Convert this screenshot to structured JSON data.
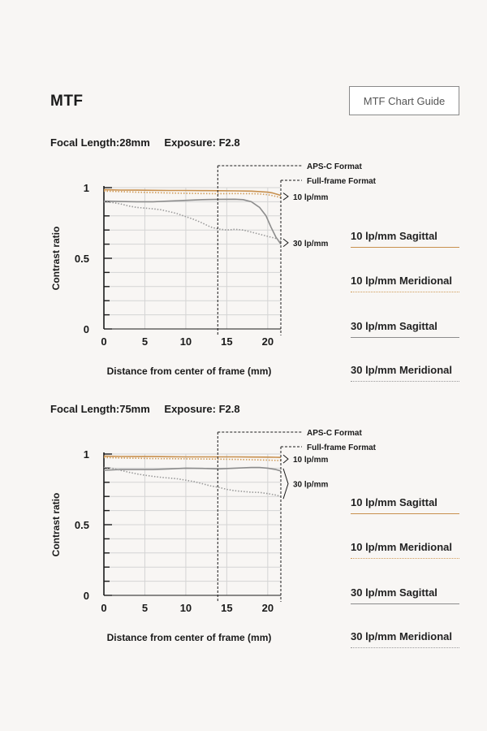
{
  "page": {
    "title": "MTF",
    "guide_button": "MTF Chart Guide"
  },
  "colors": {
    "sagittal_10": "#c8904e",
    "meridional_10": "#d09c5a",
    "sagittal_30": "#8c8c8c",
    "meridional_30": "#9a9a9a",
    "grid": "#d4d4d4"
  },
  "legend": [
    {
      "label": "10 lp/mm Sagittal",
      "color": "#c8904e",
      "style": "solid"
    },
    {
      "label": "10 lp/mm Meridional",
      "color": "#d09c5a",
      "style": "dotted"
    },
    {
      "label": "30 lp/mm Sagittal",
      "color": "#8c8c8c",
      "style": "solid"
    },
    {
      "label": "30 lp/mm Meridional",
      "color": "#9a9a9a",
      "style": "dotted"
    }
  ],
  "sections": [
    {
      "focal_label": "Focal Length:28mm",
      "exposure_label": "Exposure: F2.8"
    },
    {
      "focal_label": "Focal Length:75mm",
      "exposure_label": "Exposure: F2.8"
    }
  ],
  "chart_data": [
    {
      "type": "line",
      "xlabel": "Distance from center of frame (mm)",
      "ylabel": "Contrast ratio",
      "xlim": [
        0,
        21.6
      ],
      "ylim": [
        0,
        1
      ],
      "xticks": [
        "0",
        "5",
        "10",
        "15",
        "20"
      ],
      "yticks": [
        "0",
        "0.5",
        "1"
      ],
      "grid": true,
      "annotations": {
        "apsc": {
          "label": "APS-C Format",
          "x": 13.9
        },
        "fullframe": {
          "label": "Full-frame Format",
          "x": 21.6
        },
        "lp10_label": "10 lp/mm",
        "lp30_label": "30 lp/mm"
      },
      "series": [
        {
          "name": "10 lp/mm Sagittal",
          "color": "#c8904e",
          "dash": "",
          "x": [
            0,
            2,
            4,
            6,
            8,
            10,
            12,
            14,
            16,
            18,
            19,
            20,
            20.6,
            21.2,
            21.6
          ],
          "y": [
            0.985,
            0.983,
            0.982,
            0.981,
            0.98,
            0.98,
            0.979,
            0.978,
            0.977,
            0.975,
            0.972,
            0.968,
            0.962,
            0.952,
            0.945
          ]
        },
        {
          "name": "10 lp/mm Meridional",
          "color": "#d09c5a",
          "dash": "1.5,2",
          "x": [
            0,
            2,
            4,
            6,
            8,
            10,
            12,
            14,
            16,
            18,
            19,
            20,
            20.6,
            21.2,
            21.6
          ],
          "y": [
            0.975,
            0.972,
            0.968,
            0.965,
            0.962,
            0.96,
            0.958,
            0.957,
            0.958,
            0.957,
            0.955,
            0.95,
            0.943,
            0.935,
            0.93
          ]
        },
        {
          "name": "30 lp/mm Sagittal",
          "color": "#8c8c8c",
          "dash": "",
          "x": [
            0,
            2,
            4,
            6,
            8,
            10,
            12,
            14,
            16,
            17,
            18,
            19,
            19.8,
            20.4,
            21,
            21.6
          ],
          "y": [
            0.905,
            0.902,
            0.9,
            0.9,
            0.905,
            0.91,
            0.915,
            0.917,
            0.918,
            0.915,
            0.9,
            0.86,
            0.8,
            0.72,
            0.65,
            0.6
          ]
        },
        {
          "name": "30 lp/mm Meridional",
          "color": "#9a9a9a",
          "dash": "1.5,2",
          "x": [
            0,
            1,
            2,
            3,
            4,
            5,
            6,
            7,
            8,
            9,
            10,
            11,
            12,
            13,
            13.9,
            15,
            16,
            17,
            18,
            19,
            20,
            21,
            21.6
          ],
          "y": [
            0.9,
            0.895,
            0.885,
            0.87,
            0.86,
            0.855,
            0.85,
            0.843,
            0.83,
            0.815,
            0.795,
            0.775,
            0.75,
            0.722,
            0.708,
            0.7,
            0.705,
            0.7,
            0.685,
            0.67,
            0.655,
            0.64,
            0.62
          ]
        }
      ]
    },
    {
      "type": "line",
      "xlabel": "Distance from center of frame (mm)",
      "ylabel": "Contrast ratio",
      "xlim": [
        0,
        21.6
      ],
      "ylim": [
        0,
        1
      ],
      "xticks": [
        "0",
        "5",
        "10",
        "15",
        "20"
      ],
      "yticks": [
        "0",
        "0.5",
        "1"
      ],
      "grid": true,
      "annotations": {
        "apsc": {
          "label": "APS-C Format",
          "x": 13.9
        },
        "fullframe": {
          "label": "Full-frame Format",
          "x": 21.6
        },
        "lp10_label": "10 lp/mm",
        "lp30_label": "30 lp/mm"
      },
      "series": [
        {
          "name": "10 lp/mm Sagittal",
          "color": "#c8904e",
          "dash": "",
          "x": [
            0,
            2,
            4,
            6,
            8,
            10,
            12,
            14,
            16,
            18,
            20,
            21,
            21.6
          ],
          "y": [
            0.985,
            0.983,
            0.982,
            0.982,
            0.981,
            0.98,
            0.98,
            0.98,
            0.98,
            0.979,
            0.978,
            0.977,
            0.976
          ]
        },
        {
          "name": "10 lp/mm Meridional",
          "color": "#d09c5a",
          "dash": "1.5,2",
          "x": [
            0,
            2,
            4,
            6,
            8,
            10,
            12,
            14,
            16,
            18,
            20,
            21,
            21.6
          ],
          "y": [
            0.975,
            0.972,
            0.97,
            0.968,
            0.967,
            0.966,
            0.965,
            0.964,
            0.962,
            0.96,
            0.957,
            0.955,
            0.953
          ]
        },
        {
          "name": "30 lp/mm Sagittal",
          "color": "#8c8c8c",
          "dash": "",
          "x": [
            0,
            2,
            4,
            6,
            8,
            10,
            12,
            14,
            16,
            18,
            19,
            20,
            21,
            21.6
          ],
          "y": [
            0.885,
            0.89,
            0.89,
            0.89,
            0.895,
            0.9,
            0.898,
            0.895,
            0.9,
            0.905,
            0.905,
            0.9,
            0.89,
            0.88
          ]
        },
        {
          "name": "30 lp/mm Meridional",
          "color": "#9a9a9a",
          "dash": "1.5,2",
          "x": [
            0,
            1,
            2,
            3,
            4,
            5,
            6,
            7,
            8,
            9,
            10,
            11,
            12,
            13,
            14,
            15,
            16,
            17,
            18,
            19,
            20,
            21,
            21.6
          ],
          "y": [
            0.905,
            0.9,
            0.885,
            0.872,
            0.86,
            0.85,
            0.842,
            0.835,
            0.83,
            0.825,
            0.815,
            0.805,
            0.79,
            0.775,
            0.765,
            0.75,
            0.74,
            0.735,
            0.73,
            0.728,
            0.72,
            0.71,
            0.7
          ]
        }
      ]
    }
  ]
}
